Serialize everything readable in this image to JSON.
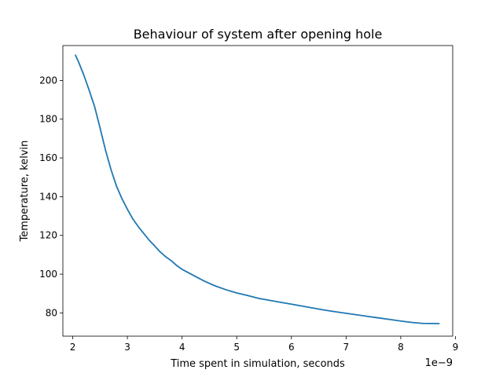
{
  "chart_data": {
    "type": "line",
    "title": "Behaviour of system after opening hole",
    "xlabel": "Time spent in simulation, seconds",
    "ylabel": "Temperature, kelvin",
    "x_offset_label": "1e−9",
    "xlim": [
      1.82,
      8.95
    ],
    "ylim": [
      68,
      218
    ],
    "xticks": [
      2,
      3,
      4,
      5,
      6,
      7,
      8,
      9
    ],
    "xtick_labels": [
      "2",
      "3",
      "4",
      "5",
      "6",
      "7",
      "8",
      "9"
    ],
    "yticks": [
      80,
      100,
      120,
      140,
      160,
      180,
      200
    ],
    "ytick_labels": [
      "80",
      "100",
      "120",
      "140",
      "160",
      "180",
      "200"
    ],
    "grid": false,
    "series": [
      {
        "color": "#1f77b4",
        "x": [
          2.05,
          2.1,
          2.2,
          2.3,
          2.4,
          2.5,
          2.6,
          2.7,
          2.8,
          2.9,
          3.0,
          3.1,
          3.2,
          3.3,
          3.4,
          3.5,
          3.6,
          3.7,
          3.8,
          3.9,
          4.0,
          4.2,
          4.4,
          4.6,
          4.8,
          5.0,
          5.2,
          5.4,
          5.6,
          5.8,
          6.0,
          6.2,
          6.4,
          6.6,
          6.8,
          7.0,
          7.2,
          7.4,
          7.6,
          7.8,
          8.0,
          8.2,
          8.4,
          8.7
        ],
        "y": [
          213,
          210,
          203,
          195,
          186.5,
          175.5,
          164,
          154,
          145.5,
          139,
          133.5,
          128.5,
          124.5,
          121,
          117.5,
          114.5,
          111.5,
          109,
          107,
          104.5,
          102.5,
          99.5,
          96.5,
          94,
          92,
          90.3,
          89,
          87.5,
          86.5,
          85.5,
          84.5,
          83.5,
          82.5,
          81.5,
          80.6,
          79.8,
          79,
          78.2,
          77.4,
          76.6,
          75.8,
          75.1,
          74.6,
          74.5
        ]
      }
    ]
  }
}
